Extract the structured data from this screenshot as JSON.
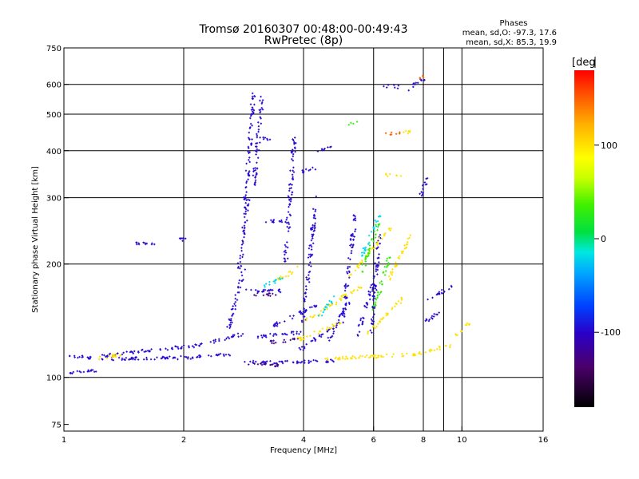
{
  "chart_data": {
    "type": "scatter",
    "title": "Tromsø 20160307 00:48:00-00:49:43",
    "subtitle": "RwPretec (8p)",
    "xlabel": "Frequency [MHz]",
    "ylabel": "Stationary phase Virtual Height [km]",
    "x_scale": "log",
    "y_scale": "log",
    "xlim": [
      1,
      16
    ],
    "ylim": [
      72,
      750
    ],
    "x_ticks": [
      1,
      2,
      4,
      6,
      8,
      10,
      16
    ],
    "y_ticks": [
      75,
      100,
      200,
      300,
      400,
      500,
      600,
      750
    ],
    "x_gridlines": [
      2,
      4,
      6,
      8,
      9,
      10
    ],
    "y_gridlines": [
      100,
      200,
      300,
      400,
      500,
      600
    ],
    "grid": true,
    "legend": {
      "title": "Phases",
      "lines": [
        "mean, sd,O: -97.3, 17.6",
        "mean, sd,X:  85.3, 19.9"
      ],
      "position": "top-right"
    },
    "colorbar": {
      "label": "[deg",
      "ticks": [
        100,
        0,
        -100
      ],
      "range": [
        -180,
        180
      ],
      "position": "right"
    },
    "series": [
      {
        "phase_deg": -97,
        "segments": [
          {
            "x0": 1.0,
            "x1": 1.2,
            "y0": 103,
            "y1": 104
          },
          {
            "x0": 1.0,
            "x1": 1.18,
            "y0": 115,
            "y1": 112
          },
          {
            "x0": 1.25,
            "x1": 2.1,
            "y0": 112,
            "y1": 113
          },
          {
            "x0": 2.1,
            "x1": 2.6,
            "y0": 113,
            "y1": 115
          },
          {
            "x0": 1.25,
            "x1": 2.2,
            "y0": 114,
            "y1": 122
          },
          {
            "x0": 2.2,
            "x1": 2.8,
            "y0": 122,
            "y1": 130
          },
          {
            "x0": 2.85,
            "x1": 4.0,
            "y0": 110,
            "y1": 110
          },
          {
            "x0": 4.0,
            "x1": 4.8,
            "y0": 110,
            "y1": 111
          },
          {
            "x0": 1.5,
            "x1": 1.7,
            "y0": 226,
            "y1": 226
          },
          {
            "x0": 1.9,
            "x1": 2.05,
            "y0": 232,
            "y1": 232
          },
          {
            "x0": 2.6,
            "x1": 2.85,
            "y0": 135,
            "y1": 200
          },
          {
            "x0": 2.75,
            "x1": 2.9,
            "y0": 190,
            "y1": 300
          },
          {
            "x0": 2.85,
            "x1": 3.0,
            "y0": 280,
            "y1": 580
          },
          {
            "x0": 3.0,
            "x1": 3.15,
            "y0": 320,
            "y1": 560
          },
          {
            "x0": 3.1,
            "x1": 3.3,
            "y0": 430,
            "y1": 430
          },
          {
            "x0": 3.2,
            "x1": 3.6,
            "y0": 260,
            "y1": 260
          },
          {
            "x0": 2.9,
            "x1": 3.6,
            "y0": 170,
            "y1": 170
          },
          {
            "x0": 3.05,
            "x1": 4.0,
            "y0": 128,
            "y1": 132
          },
          {
            "x0": 3.3,
            "x1": 4.3,
            "y0": 136,
            "y1": 155
          },
          {
            "x0": 3.6,
            "x1": 3.8,
            "y0": 200,
            "y1": 440
          },
          {
            "x0": 3.9,
            "x1": 4.7,
            "y0": 118,
            "y1": 135
          },
          {
            "x0": 4.0,
            "x1": 4.3,
            "y0": 140,
            "y1": 300
          },
          {
            "x0": 4.6,
            "x1": 5.2,
            "y0": 125,
            "y1": 160
          },
          {
            "x0": 5.0,
            "x1": 5.4,
            "y0": 140,
            "y1": 270
          },
          {
            "x0": 5.4,
            "x1": 6.0,
            "y0": 125,
            "y1": 180
          },
          {
            "x0": 5.9,
            "x1": 6.2,
            "y0": 130,
            "y1": 240
          },
          {
            "x0": 6.4,
            "x1": 6.9,
            "y0": 595,
            "y1": 590
          },
          {
            "x0": 7.2,
            "x1": 8.0,
            "y0": 575,
            "y1": 620
          },
          {
            "x0": 7.8,
            "x1": 8.2,
            "y0": 300,
            "y1": 340
          },
          {
            "x0": 8.2,
            "x1": 9.5,
            "y0": 160,
            "y1": 175
          },
          {
            "x0": 8.0,
            "x1": 9.0,
            "y0": 140,
            "y1": 150
          },
          {
            "x0": 4.3,
            "x1": 4.7,
            "y0": 400,
            "y1": 410
          },
          {
            "x0": 3.9,
            "x1": 4.3,
            "y0": 350,
            "y1": 360
          }
        ]
      },
      {
        "phase_deg": -125,
        "segments": [
          {
            "x0": 2.9,
            "x1": 3.6,
            "y0": 108,
            "y1": 108
          },
          {
            "x0": 3.0,
            "x1": 3.4,
            "y0": 166,
            "y1": 166
          },
          {
            "x0": 3.3,
            "x1": 3.9,
            "y0": 124,
            "y1": 126
          }
        ]
      },
      {
        "phase_deg": 100,
        "segments": [
          {
            "x0": 4.5,
            "x1": 7.5,
            "y0": 112,
            "y1": 115
          },
          {
            "x0": 7.5,
            "x1": 9.5,
            "y0": 115,
            "y1": 122
          },
          {
            "x0": 9.6,
            "x1": 10.5,
            "y0": 128,
            "y1": 140
          },
          {
            "x0": 3.8,
            "x1": 5.0,
            "y0": 125,
            "y1": 140
          },
          {
            "x0": 4.0,
            "x1": 5.6,
            "y0": 140,
            "y1": 175
          },
          {
            "x0": 5.2,
            "x1": 6.6,
            "y0": 185,
            "y1": 250
          },
          {
            "x0": 5.8,
            "x1": 7.2,
            "y0": 130,
            "y1": 165
          },
          {
            "x0": 6.5,
            "x1": 7.5,
            "y0": 180,
            "y1": 240
          },
          {
            "x0": 3.4,
            "x1": 3.9,
            "y0": 180,
            "y1": 195
          },
          {
            "x0": 7.0,
            "x1": 7.4,
            "y0": 445,
            "y1": 450
          },
          {
            "x0": 6.5,
            "x1": 7.0,
            "y0": 345,
            "y1": 345
          },
          {
            "x0": 1.2,
            "x1": 1.4,
            "y0": 112,
            "y1": 115
          }
        ]
      },
      {
        "phase_deg": 30,
        "segments": [
          {
            "x0": 5.6,
            "x1": 6.2,
            "y0": 190,
            "y1": 260
          },
          {
            "x0": 6.0,
            "x1": 6.6,
            "y0": 150,
            "y1": 210
          },
          {
            "x0": 5.2,
            "x1": 5.4,
            "y0": 470,
            "y1": 480
          }
        ]
      },
      {
        "phase_deg": -20,
        "segments": [
          {
            "x0": 5.6,
            "x1": 6.2,
            "y0": 210,
            "y1": 270
          },
          {
            "x0": 4.4,
            "x1": 4.8,
            "y0": 145,
            "y1": 165
          },
          {
            "x0": 3.2,
            "x1": 3.6,
            "y0": 175,
            "y1": 185
          }
        ]
      },
      {
        "phase_deg": 150,
        "segments": [
          {
            "x0": 6.5,
            "x1": 7.0,
            "y0": 445,
            "y1": 445
          },
          {
            "x0": 7.8,
            "x1": 8.1,
            "y0": 625,
            "y1": 630
          }
        ]
      }
    ]
  }
}
